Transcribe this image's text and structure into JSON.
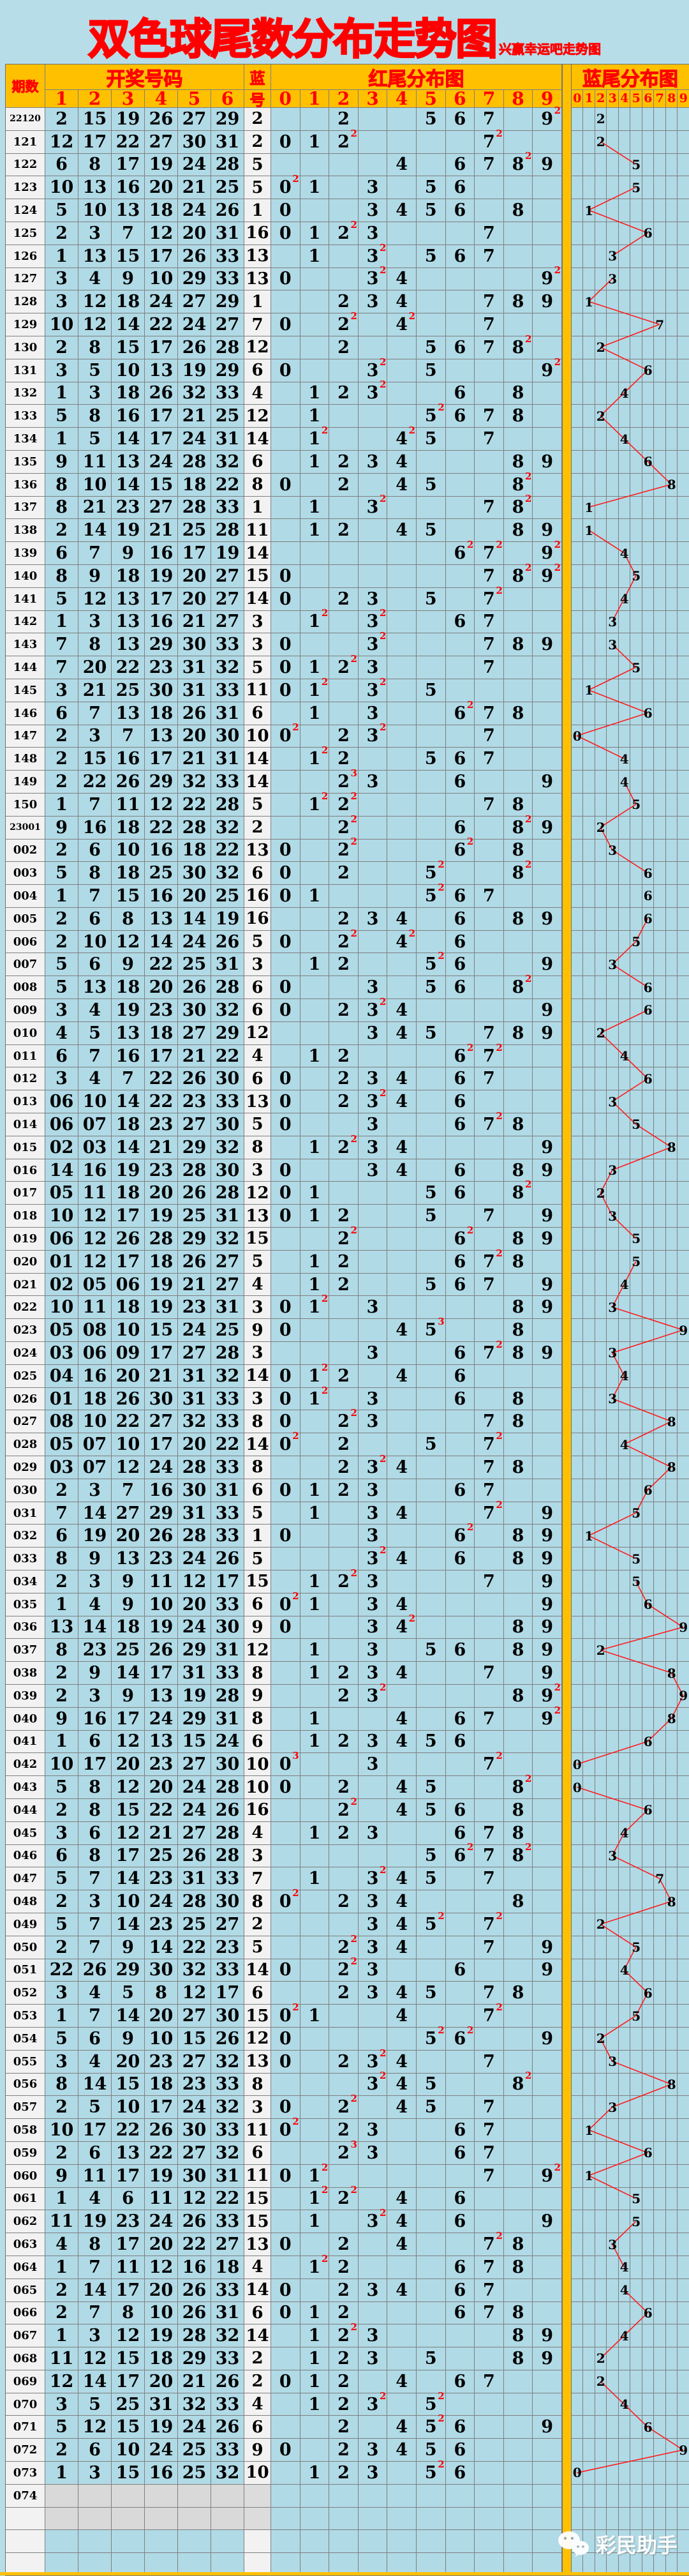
{
  "title": "双色球尾数分布走势图",
  "subtitle": "兴赢幸运吧走势图",
  "watermark": "彩民助手",
  "header": {
    "period_label": "期数",
    "red_group_label": "开奖号码",
    "blue_char_top": "蓝",
    "blue_char_bottom": "号",
    "red_tail_group_label": "红尾分布图",
    "blue_tail_group_label": "蓝尾分布图",
    "red_ball_columns": [
      "1",
      "2",
      "3",
      "4",
      "5",
      "6"
    ],
    "tail_digit_columns": [
      "0",
      "1",
      "2",
      "3",
      "4",
      "5",
      "6",
      "7",
      "8",
      "9"
    ]
  },
  "colors": {
    "page_background": "#b7dde8",
    "cell_blue": "#b0dae6",
    "header_orange": "#ffc000",
    "accent_red": "#ff0000",
    "period_cell_bg": "#f2f2f2",
    "empty_cell_gray": "#d9d9d9",
    "grid_line": "#7f7f7f",
    "line_red": "#ff1a1a",
    "text_black": "#000000",
    "watermark_white": "#ffffff"
  },
  "chart_data": {
    "type": "table",
    "title": "双色球尾数分布走势图",
    "subtitle": "兴赢幸运吧走势图",
    "row_format": [
      "period",
      "red_balls_1_to_6",
      "blue_ball"
    ],
    "derivation_note": "红尾分布图 cells show last digits of the 6 red balls (red superscript = count when a tail repeats); 蓝尾分布图 shows last digit of blue ball plotted in columns 0-9 joined by a red line (segments skipped when consecutive tails are equal).",
    "rows": [
      [
        "22120",
        [
          "2",
          "15",
          "19",
          "26",
          "27",
          "29"
        ],
        "2"
      ],
      [
        "121",
        [
          "12",
          "17",
          "22",
          "27",
          "30",
          "31"
        ],
        "2"
      ],
      [
        "122",
        [
          "6",
          "8",
          "17",
          "19",
          "24",
          "28"
        ],
        "5"
      ],
      [
        "123",
        [
          "10",
          "13",
          "16",
          "20",
          "21",
          "25"
        ],
        "5"
      ],
      [
        "124",
        [
          "5",
          "10",
          "13",
          "18",
          "24",
          "26"
        ],
        "1"
      ],
      [
        "125",
        [
          "2",
          "3",
          "7",
          "12",
          "20",
          "31"
        ],
        "16"
      ],
      [
        "126",
        [
          "1",
          "13",
          "15",
          "17",
          "26",
          "33"
        ],
        "13"
      ],
      [
        "127",
        [
          "3",
          "4",
          "9",
          "10",
          "29",
          "33"
        ],
        "13"
      ],
      [
        "128",
        [
          "3",
          "12",
          "18",
          "24",
          "27",
          "29"
        ],
        "1"
      ],
      [
        "129",
        [
          "10",
          "12",
          "14",
          "22",
          "24",
          "27"
        ],
        "7"
      ],
      [
        "130",
        [
          "2",
          "8",
          "15",
          "17",
          "26",
          "28"
        ],
        "12"
      ],
      [
        "131",
        [
          "3",
          "5",
          "10",
          "13",
          "19",
          "29"
        ],
        "6"
      ],
      [
        "132",
        [
          "1",
          "3",
          "18",
          "26",
          "32",
          "33"
        ],
        "4"
      ],
      [
        "133",
        [
          "5",
          "8",
          "16",
          "17",
          "21",
          "25"
        ],
        "12"
      ],
      [
        "134",
        [
          "1",
          "5",
          "14",
          "17",
          "24",
          "31"
        ],
        "14"
      ],
      [
        "135",
        [
          "9",
          "11",
          "13",
          "24",
          "28",
          "32"
        ],
        "6"
      ],
      [
        "136",
        [
          "8",
          "10",
          "14",
          "15",
          "18",
          "22"
        ],
        "8"
      ],
      [
        "137",
        [
          "8",
          "21",
          "23",
          "27",
          "28",
          "33"
        ],
        "1"
      ],
      [
        "138",
        [
          "2",
          "14",
          "19",
          "21",
          "25",
          "28"
        ],
        "11"
      ],
      [
        "139",
        [
          "6",
          "7",
          "9",
          "16",
          "17",
          "19"
        ],
        "14"
      ],
      [
        "140",
        [
          "8",
          "9",
          "18",
          "19",
          "20",
          "27"
        ],
        "15"
      ],
      [
        "141",
        [
          "5",
          "12",
          "13",
          "17",
          "20",
          "27"
        ],
        "14"
      ],
      [
        "142",
        [
          "1",
          "3",
          "13",
          "16",
          "21",
          "27"
        ],
        "3"
      ],
      [
        "143",
        [
          "7",
          "8",
          "13",
          "29",
          "30",
          "33"
        ],
        "3"
      ],
      [
        "144",
        [
          "7",
          "20",
          "22",
          "23",
          "31",
          "32"
        ],
        "5"
      ],
      [
        "145",
        [
          "3",
          "21",
          "25",
          "30",
          "31",
          "33"
        ],
        "11"
      ],
      [
        "146",
        [
          "6",
          "7",
          "13",
          "18",
          "26",
          "31"
        ],
        "6"
      ],
      [
        "147",
        [
          "2",
          "3",
          "7",
          "13",
          "20",
          "30"
        ],
        "10"
      ],
      [
        "148",
        [
          "2",
          "15",
          "16",
          "17",
          "21",
          "31"
        ],
        "14"
      ],
      [
        "149",
        [
          "2",
          "22",
          "26",
          "29",
          "32",
          "33"
        ],
        "14"
      ],
      [
        "150",
        [
          "1",
          "7",
          "11",
          "12",
          "22",
          "28"
        ],
        "5"
      ],
      [
        "23001",
        [
          "9",
          "16",
          "18",
          "22",
          "28",
          "32"
        ],
        "2"
      ],
      [
        "002",
        [
          "2",
          "6",
          "10",
          "16",
          "18",
          "22"
        ],
        "13"
      ],
      [
        "003",
        [
          "5",
          "8",
          "18",
          "25",
          "30",
          "32"
        ],
        "6"
      ],
      [
        "004",
        [
          "1",
          "7",
          "15",
          "16",
          "20",
          "25"
        ],
        "16"
      ],
      [
        "005",
        [
          "2",
          "6",
          "8",
          "13",
          "14",
          "19"
        ],
        "16"
      ],
      [
        "006",
        [
          "2",
          "10",
          "12",
          "14",
          "24",
          "26"
        ],
        "5"
      ],
      [
        "007",
        [
          "5",
          "6",
          "9",
          "22",
          "25",
          "31"
        ],
        "3"
      ],
      [
        "008",
        [
          "5",
          "13",
          "18",
          "20",
          "26",
          "28"
        ],
        "6"
      ],
      [
        "009",
        [
          "3",
          "4",
          "19",
          "23",
          "30",
          "32"
        ],
        "6"
      ],
      [
        "010",
        [
          "4",
          "5",
          "13",
          "18",
          "27",
          "29"
        ],
        "12"
      ],
      [
        "011",
        [
          "6",
          "7",
          "16",
          "17",
          "21",
          "22"
        ],
        "4"
      ],
      [
        "012",
        [
          "3",
          "4",
          "7",
          "22",
          "26",
          "30"
        ],
        "6"
      ],
      [
        "013",
        [
          "06",
          "10",
          "14",
          "22",
          "23",
          "33"
        ],
        "13"
      ],
      [
        "014",
        [
          "06",
          "07",
          "18",
          "23",
          "27",
          "30"
        ],
        "5"
      ],
      [
        "015",
        [
          "02",
          "03",
          "14",
          "21",
          "29",
          "32"
        ],
        "8"
      ],
      [
        "016",
        [
          "14",
          "16",
          "19",
          "23",
          "28",
          "30"
        ],
        "3"
      ],
      [
        "017",
        [
          "05",
          "11",
          "18",
          "20",
          "26",
          "28"
        ],
        "12"
      ],
      [
        "018",
        [
          "10",
          "12",
          "17",
          "19",
          "25",
          "31"
        ],
        "13"
      ],
      [
        "019",
        [
          "06",
          "12",
          "26",
          "28",
          "29",
          "32"
        ],
        "15"
      ],
      [
        "020",
        [
          "01",
          "12",
          "17",
          "18",
          "26",
          "27"
        ],
        "5"
      ],
      [
        "021",
        [
          "02",
          "05",
          "06",
          "19",
          "21",
          "27"
        ],
        "4"
      ],
      [
        "022",
        [
          "10",
          "11",
          "18",
          "19",
          "23",
          "31"
        ],
        "3"
      ],
      [
        "023",
        [
          "05",
          "08",
          "10",
          "15",
          "24",
          "25"
        ],
        "9"
      ],
      [
        "024",
        [
          "03",
          "06",
          "09",
          "17",
          "27",
          "28"
        ],
        "3"
      ],
      [
        "025",
        [
          "04",
          "16",
          "20",
          "21",
          "31",
          "32"
        ],
        "14"
      ],
      [
        "026",
        [
          "01",
          "18",
          "26",
          "30",
          "31",
          "33"
        ],
        "3"
      ],
      [
        "027",
        [
          "08",
          "10",
          "22",
          "27",
          "32",
          "33"
        ],
        "8"
      ],
      [
        "028",
        [
          "05",
          "07",
          "10",
          "17",
          "20",
          "22"
        ],
        "14"
      ],
      [
        "029",
        [
          "03",
          "07",
          "12",
          "24",
          "28",
          "33"
        ],
        "8"
      ],
      [
        "030",
        [
          "2",
          "3",
          "7",
          "16",
          "30",
          "31"
        ],
        "6"
      ],
      [
        "031",
        [
          "7",
          "14",
          "27",
          "29",
          "31",
          "33"
        ],
        "5"
      ],
      [
        "032",
        [
          "6",
          "19",
          "20",
          "26",
          "28",
          "33"
        ],
        "1"
      ],
      [
        "033",
        [
          "8",
          "9",
          "13",
          "23",
          "24",
          "26"
        ],
        "5"
      ],
      [
        "034",
        [
          "2",
          "3",
          "9",
          "11",
          "12",
          "17"
        ],
        "15"
      ],
      [
        "035",
        [
          "1",
          "4",
          "9",
          "10",
          "20",
          "33"
        ],
        "6"
      ],
      [
        "036",
        [
          "13",
          "14",
          "18",
          "19",
          "24",
          "30"
        ],
        "9"
      ],
      [
        "037",
        [
          "8",
          "23",
          "25",
          "26",
          "29",
          "31"
        ],
        "12"
      ],
      [
        "038",
        [
          "2",
          "9",
          "14",
          "17",
          "31",
          "33"
        ],
        "8"
      ],
      [
        "039",
        [
          "2",
          "3",
          "9",
          "13",
          "19",
          "28"
        ],
        "9"
      ],
      [
        "040",
        [
          "9",
          "16",
          "17",
          "24",
          "29",
          "31"
        ],
        "8"
      ],
      [
        "041",
        [
          "1",
          "6",
          "12",
          "13",
          "15",
          "24"
        ],
        "6"
      ],
      [
        "042",
        [
          "10",
          "17",
          "20",
          "23",
          "27",
          "30"
        ],
        "10"
      ],
      [
        "043",
        [
          "5",
          "8",
          "12",
          "20",
          "24",
          "28"
        ],
        "10"
      ],
      [
        "044",
        [
          "2",
          "8",
          "15",
          "22",
          "24",
          "26"
        ],
        "16"
      ],
      [
        "045",
        [
          "3",
          "6",
          "12",
          "21",
          "27",
          "28"
        ],
        "4"
      ],
      [
        "046",
        [
          "6",
          "8",
          "17",
          "25",
          "26",
          "28"
        ],
        "3"
      ],
      [
        "047",
        [
          "5",
          "7",
          "14",
          "23",
          "31",
          "33"
        ],
        "7"
      ],
      [
        "048",
        [
          "2",
          "3",
          "10",
          "24",
          "28",
          "30"
        ],
        "8"
      ],
      [
        "049",
        [
          "5",
          "7",
          "14",
          "23",
          "25",
          "27"
        ],
        "2"
      ],
      [
        "050",
        [
          "2",
          "7",
          "9",
          "14",
          "22",
          "23"
        ],
        "5"
      ],
      [
        "051",
        [
          "22",
          "26",
          "29",
          "30",
          "32",
          "33"
        ],
        "14"
      ],
      [
        "052",
        [
          "3",
          "4",
          "5",
          "8",
          "12",
          "17"
        ],
        "6"
      ],
      [
        "053",
        [
          "1",
          "7",
          "14",
          "20",
          "27",
          "30"
        ],
        "15"
      ],
      [
        "054",
        [
          "5",
          "6",
          "9",
          "10",
          "15",
          "26"
        ],
        "12"
      ],
      [
        "055",
        [
          "3",
          "4",
          "20",
          "23",
          "27",
          "32"
        ],
        "13"
      ],
      [
        "056",
        [
          "8",
          "14",
          "15",
          "18",
          "23",
          "33"
        ],
        "8"
      ],
      [
        "057",
        [
          "2",
          "5",
          "10",
          "17",
          "24",
          "32"
        ],
        "3"
      ],
      [
        "058",
        [
          "10",
          "17",
          "22",
          "26",
          "30",
          "33"
        ],
        "11"
      ],
      [
        "059",
        [
          "2",
          "6",
          "13",
          "22",
          "27",
          "32"
        ],
        "6"
      ],
      [
        "060",
        [
          "9",
          "11",
          "17",
          "19",
          "30",
          "31"
        ],
        "11"
      ],
      [
        "061",
        [
          "1",
          "4",
          "6",
          "11",
          "12",
          "22"
        ],
        "15"
      ],
      [
        "062",
        [
          "11",
          "19",
          "23",
          "24",
          "26",
          "33"
        ],
        "15"
      ],
      [
        "063",
        [
          "4",
          "8",
          "17",
          "20",
          "22",
          "27"
        ],
        "13"
      ],
      [
        "064",
        [
          "1",
          "7",
          "11",
          "12",
          "16",
          "18"
        ],
        "4"
      ],
      [
        "065",
        [
          "2",
          "14",
          "17",
          "20",
          "26",
          "33"
        ],
        "14"
      ],
      [
        "066",
        [
          "2",
          "7",
          "8",
          "10",
          "26",
          "31"
        ],
        "6"
      ],
      [
        "067",
        [
          "1",
          "3",
          "12",
          "19",
          "28",
          "32"
        ],
        "14"
      ],
      [
        "068",
        [
          "11",
          "12",
          "15",
          "18",
          "29",
          "33"
        ],
        "2"
      ],
      [
        "069",
        [
          "12",
          "14",
          "17",
          "20",
          "21",
          "26"
        ],
        "2"
      ],
      [
        "070",
        [
          "3",
          "5",
          "25",
          "31",
          "32",
          "33"
        ],
        "4"
      ],
      [
        "071",
        [
          "5",
          "12",
          "15",
          "19",
          "24",
          "26"
        ],
        "6"
      ],
      [
        "072",
        [
          "2",
          "6",
          "10",
          "24",
          "25",
          "33"
        ],
        "9"
      ],
      [
        "073",
        [
          "1",
          "3",
          "15",
          "16",
          "25",
          "32"
        ],
        "10"
      ],
      [
        "074",
        [],
        ""
      ]
    ],
    "trailing_empty_rows": 3
  }
}
